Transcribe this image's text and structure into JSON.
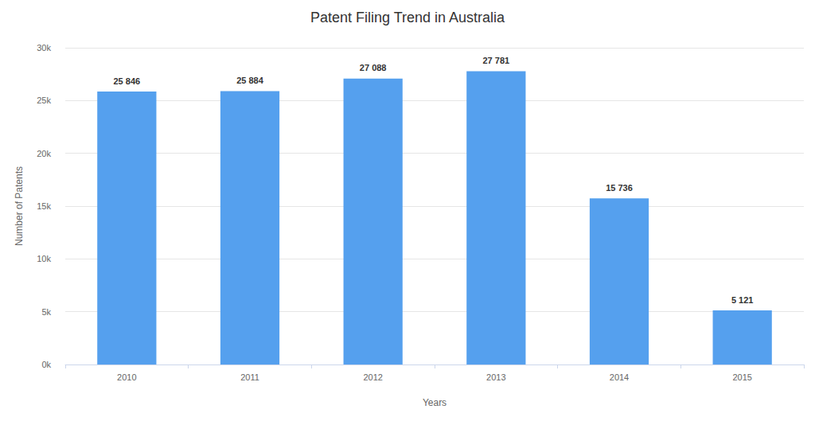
{
  "chart_data": {
    "type": "bar",
    "title": "Patent Filing Trend in Australia",
    "x_label": "Years",
    "y_label": "Number of Patents",
    "categories": [
      "2010",
      "2011",
      "2012",
      "2013",
      "2014",
      "2015"
    ],
    "values": [
      25846,
      25884,
      27088,
      27781,
      15736,
      5121
    ],
    "value_labels": [
      "25 846",
      "25 884",
      "27 088",
      "27 781",
      "15 736",
      "5 121"
    ],
    "color": "#55a0ee",
    "ylim": [
      0,
      30000
    ],
    "yticks": [
      {
        "value": 0,
        "label": "0k"
      },
      {
        "value": 5000,
        "label": "5k"
      },
      {
        "value": 10000,
        "label": "10k"
      },
      {
        "value": 15000,
        "label": "15k"
      },
      {
        "value": 20000,
        "label": "20k"
      },
      {
        "value": 25000,
        "label": "25k"
      },
      {
        "value": 30000,
        "label": "30k"
      }
    ],
    "grid": true,
    "data_labels": true
  }
}
